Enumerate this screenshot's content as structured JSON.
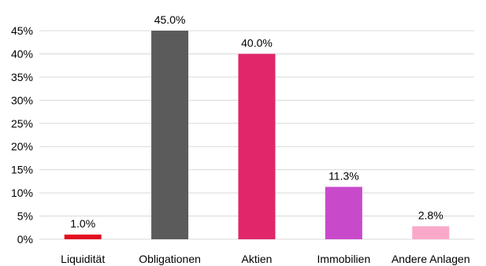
{
  "chart_data": {
    "type": "bar",
    "categories": [
      "Liquidität",
      "Obligationen",
      "Aktien",
      "Immobilien",
      "Andere Anlagen"
    ],
    "values": [
      1.0,
      45.0,
      40.0,
      11.3,
      2.8
    ],
    "data_labels": [
      "1.0%",
      "45.0%",
      "40.0%",
      "11.3%",
      "2.8%"
    ],
    "colors": [
      "#e3101e",
      "#5b5b5b",
      "#e2266a",
      "#c84acb",
      "#f9a8c9"
    ],
    "ylim": [
      0,
      45
    ],
    "yticks": [
      0,
      5,
      10,
      15,
      20,
      25,
      30,
      35,
      40,
      45
    ],
    "ytick_labels": [
      "0%",
      "5%",
      "10%",
      "15%",
      "20%",
      "25%",
      "30%",
      "35%",
      "40%",
      "45%"
    ],
    "grid": true,
    "gridline_color": "#d9d9d9",
    "title": "",
    "xlabel": "",
    "ylabel": ""
  }
}
